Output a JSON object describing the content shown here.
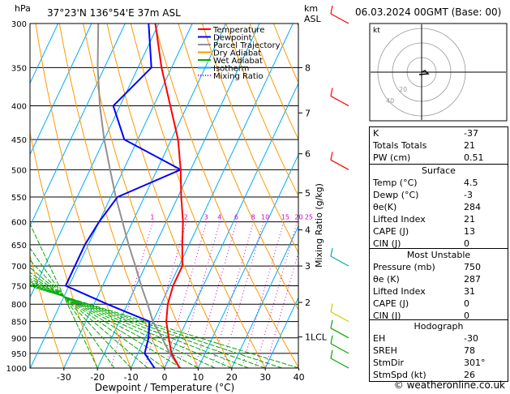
{
  "header": {
    "units_label": "hPa",
    "location": "37°23'N  136°54'E  37m  ASL",
    "km_label": "km",
    "asl_label": "ASL",
    "datetime": "06.03.2024  00GMT  (Base: 00)"
  },
  "legend": {
    "items": [
      {
        "label": "Temperature",
        "color": "#ff0000",
        "style": "solid"
      },
      {
        "label": "Dewpoint",
        "color": "#0000ff",
        "style": "solid"
      },
      {
        "label": "Parcel Trajectory",
        "color": "#909090",
        "style": "solid"
      },
      {
        "label": "Dry Adiabat",
        "color": "#ff9900",
        "style": "solid"
      },
      {
        "label": "Wet Adiabat",
        "color": "#00aa00",
        "style": "solid"
      },
      {
        "label": "Isotherm",
        "color": "#00aaff",
        "style": "solid"
      },
      {
        "label": "Mixing Ratio",
        "color": "#cc00cc",
        "style": "dotted"
      }
    ]
  },
  "chart_data": {
    "type": "skew-t",
    "xlabel": "Dewpoint / Temperature (°C)",
    "ylabel_right": "Mixing Ratio (g/kg)",
    "pressure_ticks": [
      300,
      350,
      400,
      450,
      500,
      550,
      600,
      650,
      700,
      750,
      800,
      850,
      900,
      950,
      1000
    ],
    "temp_ticks": [
      -30,
      -20,
      -10,
      0,
      10,
      20,
      30,
      40
    ],
    "xlim": [
      -40,
      40
    ],
    "ylim": [
      1000,
      300
    ],
    "km_ticks": [
      {
        "km": "8",
        "p": 350
      },
      {
        "km": "7",
        "p": 410
      },
      {
        "km": "6",
        "p": 473
      },
      {
        "km": "5",
        "p": 542
      },
      {
        "km": "4",
        "p": 617
      },
      {
        "km": "3",
        "p": 700
      },
      {
        "km": "2",
        "p": 795
      },
      {
        "km": "1LCL",
        "p": 897
      }
    ],
    "mixing_ratio_labels": [
      {
        "label": "1",
        "p": 600,
        "t": -24
      },
      {
        "label": "2",
        "p": 600,
        "t": -14
      },
      {
        "label": "3",
        "p": 600,
        "t": -8
      },
      {
        "label": "4",
        "p": 600,
        "t": -4
      },
      {
        "label": "6",
        "p": 600,
        "t": 1
      },
      {
        "label": "8",
        "p": 600,
        "t": 6
      },
      {
        "label": "10",
        "p": 600,
        "t": 9
      },
      {
        "label": "15",
        "p": 600,
        "t": 15
      },
      {
        "label": "20",
        "p": 600,
        "t": 19
      },
      {
        "label": "25",
        "p": 600,
        "t": 22
      }
    ],
    "temperature": {
      "p": [
        1000,
        950,
        900,
        850,
        800,
        750,
        700,
        650,
        600,
        550,
        500,
        450,
        400,
        350,
        300
      ],
      "t": [
        4.5,
        0,
        -3,
        -6,
        -8,
        -9,
        -9,
        -12,
        -15,
        -19,
        -23,
        -28,
        -35,
        -43,
        -51
      ]
    },
    "dewpoint": {
      "p": [
        1000,
        950,
        900,
        850,
        800,
        750,
        700,
        650,
        600,
        550,
        500,
        450,
        400,
        350,
        300
      ],
      "t": [
        -3,
        -8,
        -9,
        -11,
        -26,
        -41,
        -41,
        -41,
        -40,
        -38,
        -23,
        -44,
        -52,
        -46,
        -53
      ]
    },
    "parcel": {
      "p": [
        1000,
        950,
        900,
        850,
        800,
        750,
        700,
        650,
        600,
        550,
        500,
        450,
        400,
        350,
        300
      ],
      "t": [
        4.5,
        -0.5,
        -5,
        -10,
        -14,
        -18.5,
        -23,
        -28,
        -33,
        -38.5,
        -44,
        -50,
        -56,
        -62,
        -68
      ]
    },
    "hodograph": {
      "label": "kt",
      "rings": [
        "20",
        "40"
      ],
      "rings_values": [
        20,
        40
      ]
    },
    "wind_barbs": [
      {
        "p": 300,
        "color": "#ff0000"
      },
      {
        "p": 400,
        "color": "#ff0000"
      },
      {
        "p": 500,
        "color": "#ff0000"
      },
      {
        "p": 700,
        "color": "#00aaaa"
      },
      {
        "p": 850,
        "color": "#cccc00"
      },
      {
        "p": 900,
        "color": "#00aa00"
      },
      {
        "p": 950,
        "color": "#00aa00"
      },
      {
        "p": 1000,
        "color": "#00aa00"
      }
    ]
  },
  "indices": {
    "rows": [
      {
        "label": "K",
        "value": "-37"
      },
      {
        "label": "Totals Totals",
        "value": "21"
      },
      {
        "label": "PW (cm)",
        "value": "0.51"
      }
    ]
  },
  "surface": {
    "title": "Surface",
    "rows": [
      {
        "label": "Temp (°C)",
        "value": "4.5"
      },
      {
        "label": "Dewp (°C)",
        "value": "-3"
      },
      {
        "label": "θe(K)",
        "value": "284"
      },
      {
        "label": "Lifted Index",
        "value": "21"
      },
      {
        "label": "CAPE (J)",
        "value": "13"
      },
      {
        "label": "CIN (J)",
        "value": "0"
      }
    ]
  },
  "most_unstable": {
    "title": "Most Unstable",
    "rows": [
      {
        "label": "Pressure (mb)",
        "value": "750"
      },
      {
        "label": "θe (K)",
        "value": "287"
      },
      {
        "label": "Lifted Index",
        "value": "31"
      },
      {
        "label": "CAPE (J)",
        "value": "0"
      },
      {
        "label": "CIN (J)",
        "value": "0"
      }
    ]
  },
  "hodograph_table": {
    "title": "Hodograph",
    "rows": [
      {
        "label": "EH",
        "value": "-30"
      },
      {
        "label": "SREH",
        "value": "78"
      },
      {
        "label": "StmDir",
        "value": "301°"
      },
      {
        "label": "StmSpd (kt)",
        "value": "26"
      }
    ]
  },
  "footer": "© weatheronline.co.uk"
}
